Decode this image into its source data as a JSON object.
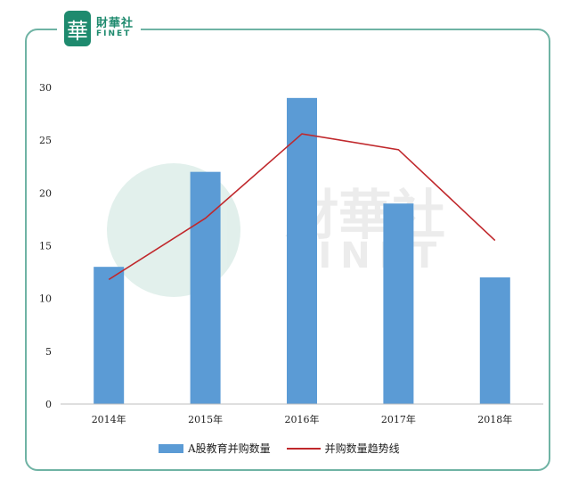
{
  "brand": {
    "seal": "華",
    "name_cn": "財華社",
    "name_en": "FINET"
  },
  "watermark": {
    "name_cn": "財華社",
    "name_en": "FINET"
  },
  "colors": {
    "bar": "#5b9bd5",
    "line": "#c0282c",
    "frame": "#6fb3a4",
    "brand": "#1e8a6e"
  },
  "chart_data": {
    "type": "bar",
    "categories": [
      "2014年",
      "2015年",
      "2016年",
      "2017年",
      "2018年"
    ],
    "series": [
      {
        "name": "A股教育并购数量",
        "type": "bar",
        "values": [
          13,
          22,
          29,
          19,
          12
        ]
      },
      {
        "name": "并购数量趋势线",
        "type": "line",
        "values": [
          11.8,
          17.6,
          25.6,
          24.1,
          15.5
        ]
      }
    ],
    "yticks": [
      0,
      5,
      10,
      15,
      20,
      25,
      30
    ],
    "ylim": [
      0,
      30
    ],
    "grid": false,
    "legend": "bottom"
  }
}
